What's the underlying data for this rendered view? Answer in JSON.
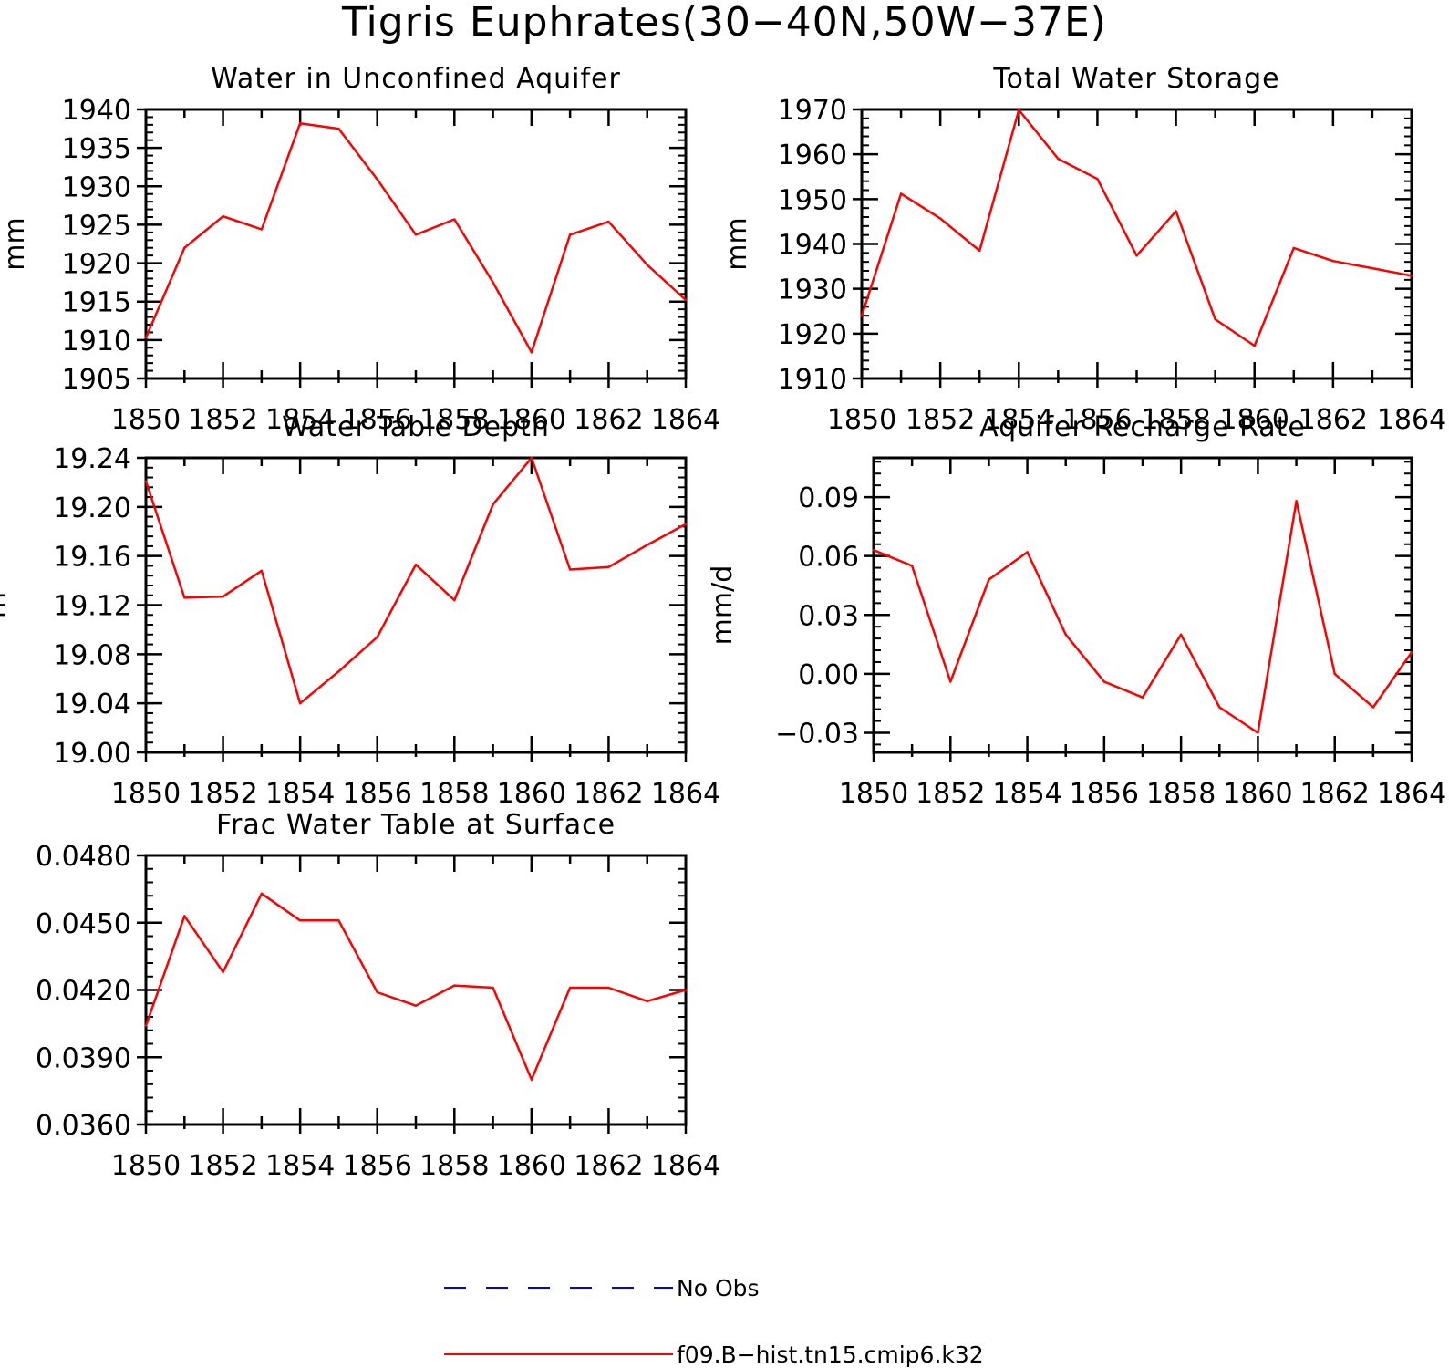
{
  "title": "Tigris Euphrates(30−40N,50W−37E)",
  "chart_data": [
    {
      "type": "line",
      "title": "Water in Unconfined Aquifer",
      "ylabel": "mm",
      "xlabel": "",
      "xlim": [
        1850,
        1864
      ],
      "ylim": [
        1905,
        1940
      ],
      "x_ticks": [
        "1850",
        "1852",
        "1854",
        "1856",
        "1858",
        "1860",
        "1862",
        "1864"
      ],
      "y_ticks": [
        "1905",
        "1910",
        "1915",
        "1920",
        "1925",
        "1930",
        "1935",
        "1940"
      ],
      "x": [
        1850,
        1851,
        1852,
        1853,
        1854,
        1855,
        1856,
        1857,
        1858,
        1859,
        1860,
        1861,
        1862,
        1863,
        1864
      ],
      "series": [
        {
          "name": "f09.B−hist.tn15.cmip6.k32",
          "color": "#ff0000",
          "values": [
            1910.3,
            1922.0,
            1926.1,
            1924.4,
            1938.2,
            1937.5,
            1930.9,
            1923.7,
            1925.7,
            1917.5,
            1908.4,
            1923.7,
            1925.4,
            1919.8,
            1915.2
          ]
        }
      ]
    },
    {
      "type": "line",
      "title": "Total Water Storage",
      "ylabel": "mm",
      "xlabel": "",
      "xlim": [
        1850,
        1864
      ],
      "ylim": [
        1910,
        1970
      ],
      "x_ticks": [
        "1850",
        "1852",
        "1854",
        "1856",
        "1858",
        "1860",
        "1862",
        "1864"
      ],
      "y_ticks": [
        "1910",
        "1920",
        "1930",
        "1940",
        "1950",
        "1960",
        "1970"
      ],
      "x": [
        1850,
        1851,
        1852,
        1853,
        1854,
        1855,
        1856,
        1857,
        1858,
        1859,
        1860,
        1861,
        1862,
        1863,
        1864
      ],
      "series": [
        {
          "name": "f09.B−hist.tn15.cmip6.k32",
          "color": "#ff0000",
          "values": [
            1924.0,
            1951.2,
            1945.7,
            1938.5,
            1969.9,
            1959.0,
            1954.5,
            1937.4,
            1947.3,
            1923.2,
            1917.3,
            1939.1,
            1936.2,
            1934.6,
            1932.9
          ]
        }
      ]
    },
    {
      "type": "line",
      "title": "Water Table Depth",
      "ylabel": "m",
      "xlabel": "",
      "xlim": [
        1850,
        1864
      ],
      "ylim": [
        19.0,
        19.24
      ],
      "x_ticks": [
        "1850",
        "1852",
        "1854",
        "1856",
        "1858",
        "1860",
        "1862",
        "1864"
      ],
      "y_ticks": [
        "19.00",
        "19.04",
        "19.08",
        "19.12",
        "19.16",
        "19.20",
        "19.24"
      ],
      "x": [
        1850,
        1851,
        1852,
        1853,
        1854,
        1855,
        1856,
        1857,
        1858,
        1859,
        1860,
        1861,
        1862,
        1863,
        1864
      ],
      "series": [
        {
          "name": "f09.B−hist.tn15.cmip6.k32",
          "color": "#ff0000",
          "values": [
            19.221,
            19.126,
            19.127,
            19.148,
            19.04,
            19.066,
            19.094,
            19.153,
            19.124,
            19.202,
            19.24,
            19.149,
            19.151,
            19.169,
            19.186
          ]
        }
      ]
    },
    {
      "type": "line",
      "title": "Aquifer Recharge Rate",
      "ylabel": "mm/d",
      "xlabel": "",
      "xlim": [
        1850,
        1864
      ],
      "ylim": [
        -0.04,
        0.11
      ],
      "x_ticks": [
        "1850",
        "1852",
        "1854",
        "1856",
        "1858",
        "1860",
        "1862",
        "1864"
      ],
      "y_ticks": [
        "−0.03",
        "0.00",
        "0.03",
        "0.06",
        "0.09"
      ],
      "y_tick_values": [
        -0.03,
        0.0,
        0.03,
        0.06,
        0.09
      ],
      "x": [
        1850,
        1851,
        1852,
        1853,
        1854,
        1855,
        1856,
        1857,
        1858,
        1859,
        1860,
        1861,
        1862,
        1863,
        1864
      ],
      "series": [
        {
          "name": "f09.B−hist.tn15.cmip6.k32",
          "color": "#ff0000",
          "values": [
            0.063,
            0.055,
            -0.004,
            0.048,
            0.062,
            0.02,
            -0.004,
            -0.012,
            0.02,
            -0.017,
            -0.03,
            0.088,
            0.0,
            -0.017,
            0.011
          ]
        }
      ]
    },
    {
      "type": "line",
      "title": "Frac Water Table at Surface",
      "ylabel": "",
      "xlabel": "",
      "xlim": [
        1850,
        1864
      ],
      "ylim": [
        0.036,
        0.048
      ],
      "x_ticks": [
        "1850",
        "1852",
        "1854",
        "1856",
        "1858",
        "1860",
        "1862",
        "1864"
      ],
      "y_ticks": [
        "0.0360",
        "0.0390",
        "0.0420",
        "0.0450",
        "0.0480"
      ],
      "x": [
        1850,
        1851,
        1852,
        1853,
        1854,
        1855,
        1856,
        1857,
        1858,
        1859,
        1860,
        1861,
        1862,
        1863,
        1864
      ],
      "series": [
        {
          "name": "f09.B−hist.tn15.cmip6.k32",
          "color": "#ff0000",
          "values": [
            0.0404,
            0.0453,
            0.0428,
            0.0463,
            0.0451,
            0.0451,
            0.0419,
            0.0413,
            0.0422,
            0.0421,
            0.038,
            0.0421,
            0.0421,
            0.0415,
            0.042
          ]
        }
      ]
    }
  ],
  "legend": {
    "placement": "bottom-center",
    "items": [
      {
        "label": "No Obs",
        "color": "#0000ff",
        "style": "dashed"
      },
      {
        "label": "f09.B−hist.tn15.cmip6.k32",
        "color": "#ff0000",
        "style": "solid"
      }
    ]
  }
}
